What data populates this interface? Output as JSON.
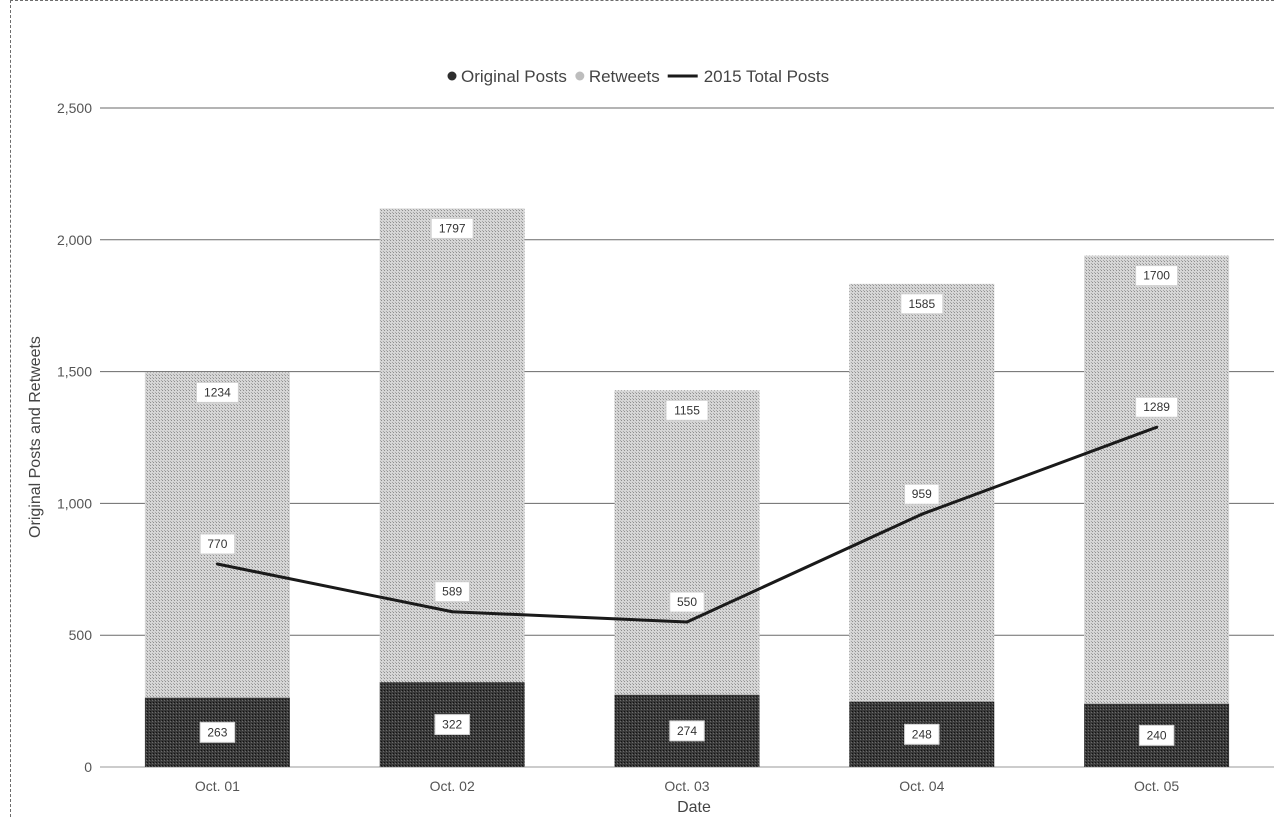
{
  "chart_data": {
    "type": "bar",
    "stacked": true,
    "categories": [
      "Oct. 01",
      "Oct. 02",
      "Oct. 03",
      "Oct. 04",
      "Oct. 05"
    ],
    "series": [
      {
        "name": "Original Posts",
        "type": "bar",
        "values": [
          263,
          322,
          274,
          248,
          240
        ],
        "color": "#2e2e2e"
      },
      {
        "name": "Retweets",
        "type": "bar",
        "values": [
          1234,
          1797,
          1155,
          1585,
          1700
        ],
        "color": "#bdbdbd"
      },
      {
        "name": "2015 Total Posts",
        "type": "line",
        "values": [
          770,
          589,
          550,
          959,
          1289
        ],
        "color": "#1a1a1a"
      }
    ],
    "xlabel": "Date",
    "ylabel": "Original Posts and Retweets",
    "ylim": [
      0,
      2500
    ],
    "yticks": [
      0,
      500,
      1000,
      1500,
      2000,
      2500
    ],
    "ytick_labels": [
      "0",
      "500",
      "1,000",
      "1,500",
      "2,000",
      "2,500"
    ],
    "grid": true,
    "legend_position": "top-center"
  }
}
